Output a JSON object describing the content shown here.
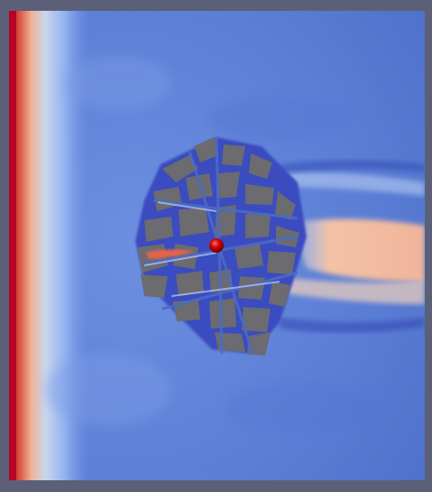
{
  "visualization": {
    "kind": "simulation-field",
    "colormap": [
      "#3b4cc0",
      "#5f7fe0",
      "#8fb0f0",
      "#dfe6f2",
      "#f4b89a",
      "#e0654b",
      "#b40426"
    ],
    "background_color": "#5b6078",
    "building_color": "#6b6b70",
    "source_marker_color": "#c00000"
  }
}
